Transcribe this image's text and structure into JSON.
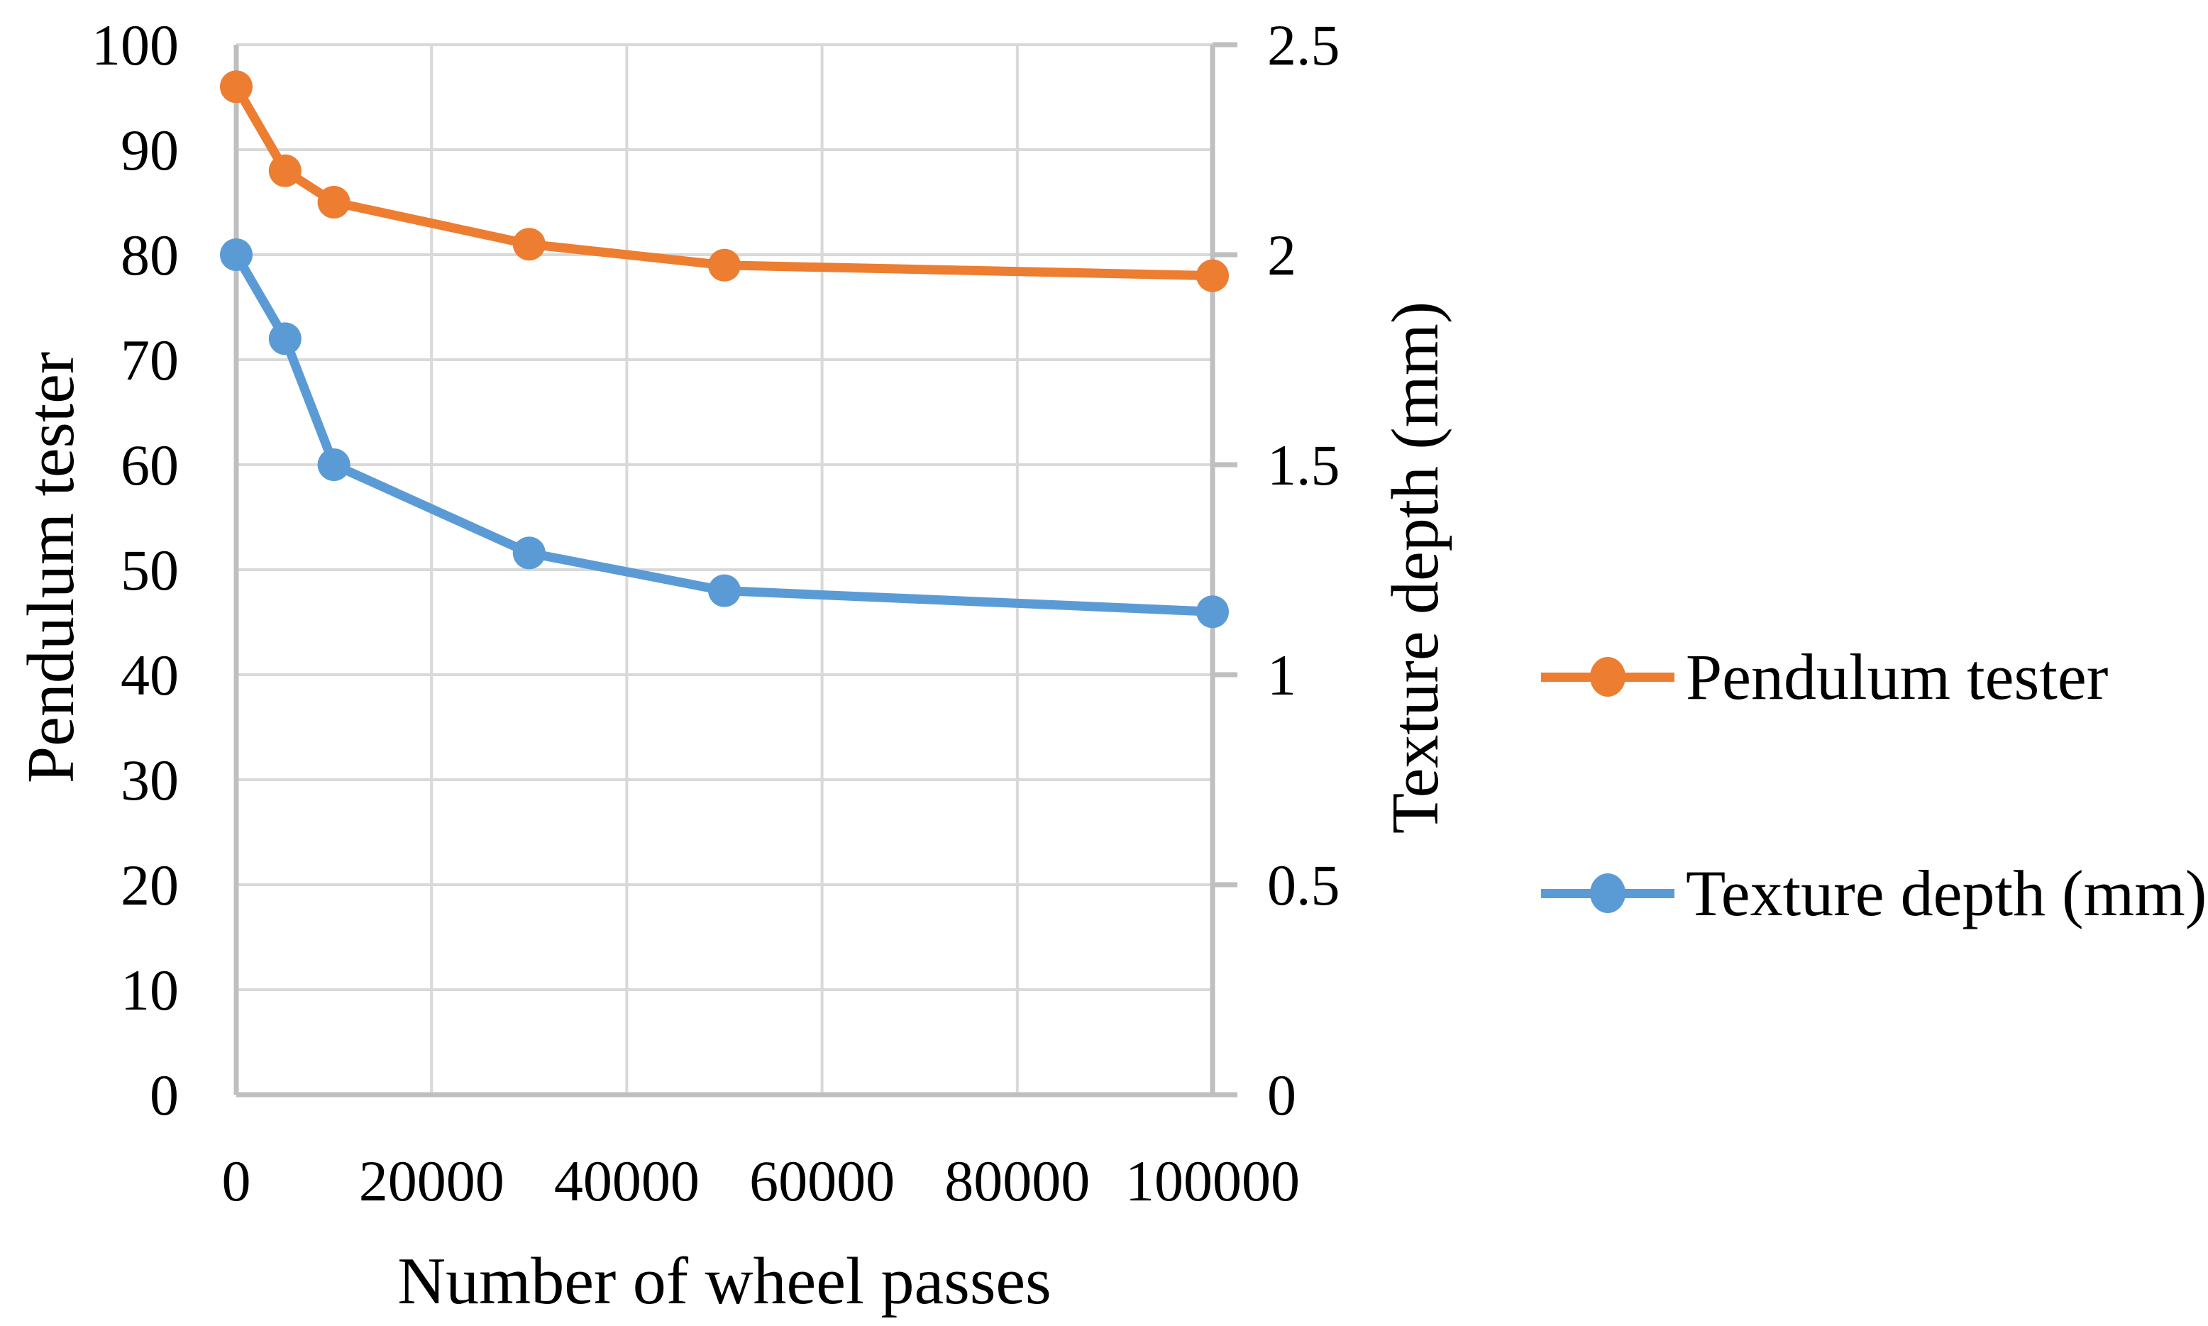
{
  "chart_data": {
    "type": "line",
    "title": "",
    "xlabel": "Number of wheel passes",
    "x": [
      0,
      5000,
      10000,
      30000,
      50000,
      100000
    ],
    "xlim": [
      0,
      100000
    ],
    "x_ticks": [
      0,
      20000,
      40000,
      60000,
      80000,
      100000
    ],
    "x_tick_labels": [
      "0",
      "20000",
      "40000",
      "60000",
      "80000",
      "100000"
    ],
    "axes": {
      "left": {
        "label": "Pendulum tester",
        "min": 0,
        "max": 100,
        "ticks": [
          0,
          10,
          20,
          30,
          40,
          50,
          60,
          70,
          80,
          90,
          100
        ],
        "tick_labels": [
          "0",
          "10",
          "20",
          "30",
          "40",
          "50",
          "60",
          "70",
          "80",
          "90",
          "100"
        ]
      },
      "right": {
        "label": "Texture depth (mm)",
        "min": 0,
        "max": 2.5,
        "ticks": [
          0,
          0.5,
          1,
          1.5,
          2,
          2.5
        ],
        "tick_labels": [
          "0",
          "0.5",
          "1",
          "1.5",
          "2",
          "2.5"
        ]
      }
    },
    "series": [
      {
        "name": "Pendulum tester",
        "axis": "left",
        "color": "#ED7D31",
        "values": [
          96,
          88,
          85,
          81,
          79,
          78
        ]
      },
      {
        "name": "Texture depth (mm)",
        "axis": "right",
        "color": "#5B9BD5",
        "values": [
          2.0,
          1.8,
          1.5,
          1.29,
          1.2,
          1.15
        ]
      }
    ],
    "grid": true,
    "legend_position": "right"
  },
  "legend": {
    "items": [
      {
        "label": "Pendulum tester",
        "color": "#ED7D31"
      },
      {
        "label": "Texture depth (mm)",
        "color": "#5B9BD5"
      }
    ]
  },
  "colors": {
    "background": "#FFFFFF",
    "gridline": "#D9D9D9",
    "axis_line": "#BFBFBF",
    "text": "#000000",
    "series_orange": "#ED7D31",
    "series_blue": "#5B9BD5"
  }
}
